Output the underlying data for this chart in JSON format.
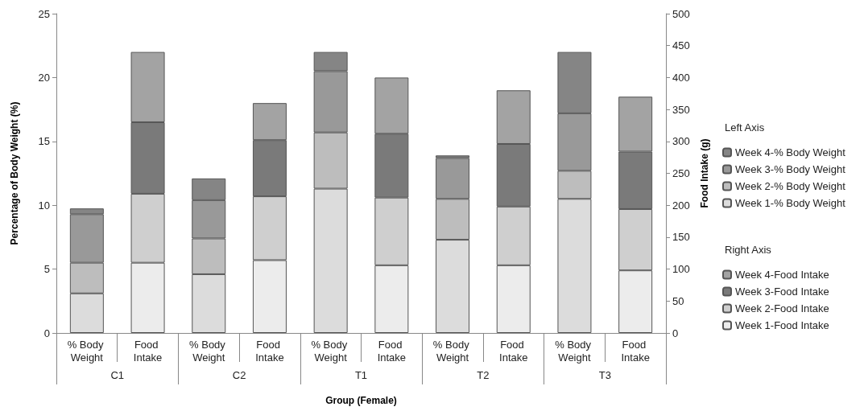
{
  "chart_data": {
    "type": "bar",
    "stacked": true,
    "xlabel": "Group (Female)",
    "ylabel": "Percentage of Body Weight (%)",
    "y2label": "Food Intake (g)",
    "categories": [
      "% Body Weight",
      "Food Intake",
      "% Body Weight",
      "Food Intake",
      "% Body Weight",
      "Food Intake",
      "% Body Weight",
      "Food Intake",
      "% Body Weight",
      "Food Intake"
    ],
    "annotations": [
      "C1",
      "C2",
      "T1",
      "T2",
      "T3",
      "Left Axis",
      "Right Axis"
    ],
    "ylim": [
      0,
      25
    ],
    "yticks": [
      0,
      5,
      10,
      15,
      20,
      25
    ],
    "y2lim": [
      0,
      500
    ],
    "y2ticks": [
      0,
      50,
      100,
      150,
      200,
      250,
      300,
      350,
      400,
      450,
      500
    ],
    "grid": false,
    "legend": "right",
    "series": [
      {
        "name": "Week 1-% Body Weight",
        "color": "#dcdcdc",
        "values": [
          3.1,
          null,
          4.6,
          null,
          11.3,
          null,
          7.3,
          null,
          10.5,
          null
        ]
      },
      {
        "name": "Week 2-% Body Weight",
        "color": "#bdbdbd",
        "values": [
          2.4,
          null,
          2.8,
          null,
          4.4,
          null,
          3.2,
          null,
          2.2,
          null
        ]
      },
      {
        "name": "Week 3-% Body Weight",
        "color": "#999999",
        "values": [
          3.8,
          null,
          3.0,
          null,
          4.8,
          null,
          3.2,
          null,
          4.5,
          null
        ]
      },
      {
        "name": "Week 4-% Body Weight",
        "color": "#858585",
        "values": [
          0.45,
          null,
          1.7,
          null,
          1.5,
          null,
          0.2,
          null,
          4.8,
          null
        ]
      },
      {
        "name": "Week 1-Food Intake",
        "color": "#ececec",
        "axis": "y2",
        "values": [
          null,
          110,
          null,
          114,
          null,
          106,
          null,
          106,
          null,
          98
        ]
      },
      {
        "name": "Week 2-Food Intake",
        "color": "#cfcfcf",
        "axis": "y2",
        "values": [
          null,
          108,
          null,
          100,
          null,
          106,
          null,
          92,
          null,
          96
        ]
      },
      {
        "name": "Week 3-Food Intake",
        "color": "#7a7a7a",
        "axis": "y2",
        "values": [
          null,
          112,
          null,
          88,
          null,
          100,
          null,
          98,
          null,
          90
        ]
      },
      {
        "name": "Week 4-Food Intake",
        "color": "#a3a3a3",
        "axis": "y2",
        "values": [
          null,
          110,
          null,
          58,
          null,
          88,
          null,
          84,
          null,
          86
        ]
      }
    ]
  }
}
